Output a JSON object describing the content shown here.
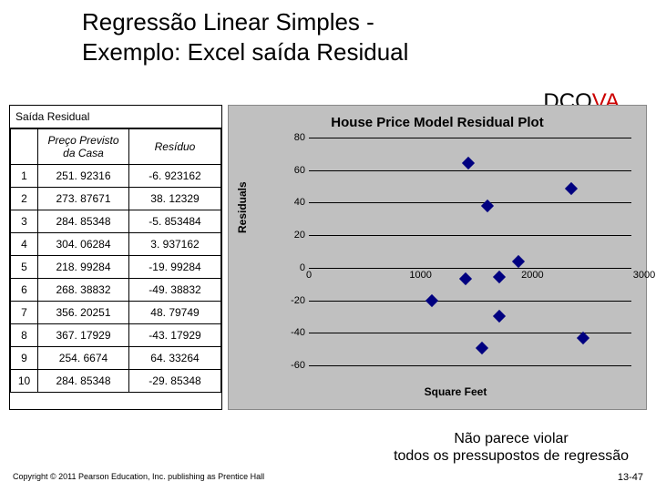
{
  "title_line1": "Regressão Linear Simples -",
  "title_line2": "Exemplo: Excel saída Residual",
  "dcova_dc": "DCO",
  "dcova_va": "VA",
  "table": {
    "title": "Saída Residual",
    "col1": "Preço Previsto da Casa",
    "col2": "Resíduo",
    "rows": [
      {
        "n": "1",
        "pred": "251. 92316",
        "res": "-6. 923162"
      },
      {
        "n": "2",
        "pred": "273. 87671",
        "res": "38. 12329"
      },
      {
        "n": "3",
        "pred": "284. 85348",
        "res": "-5. 853484"
      },
      {
        "n": "4",
        "pred": "304. 06284",
        "res": "3. 937162"
      },
      {
        "n": "5",
        "pred": "218. 99284",
        "res": "-19. 99284"
      },
      {
        "n": "6",
        "pred": "268. 38832",
        "res": "-49. 38832"
      },
      {
        "n": "7",
        "pred": "356. 20251",
        "res": "48. 79749"
      },
      {
        "n": "8",
        "pred": "367. 17929",
        "res": "-43. 17929"
      },
      {
        "n": "9",
        "pred": "254. 6674",
        "res": "64. 33264"
      },
      {
        "n": "10",
        "pred": "284. 85348",
        "res": "-29. 85348"
      }
    ]
  },
  "chart": {
    "title": "House Price Model Residual Plot",
    "ylabel": "Residuals",
    "xlabel": "Square Feet",
    "xlim": [
      0,
      3000
    ],
    "ylim": [
      -60,
      80
    ],
    "yticks": [
      -60,
      -40,
      -20,
      0,
      20,
      40,
      60,
      80
    ],
    "xticks": [
      0,
      1000,
      2000,
      3000
    ],
    "grid_color": "#000000",
    "background_color": "#c0c0c0",
    "point_color": "#000080",
    "point_size": 10,
    "points": [
      {
        "x": 1400,
        "y": -6.92
      },
      {
        "x": 1600,
        "y": 38.12
      },
      {
        "x": 1700,
        "y": -5.85
      },
      {
        "x": 1875,
        "y": 3.94
      },
      {
        "x": 1100,
        "y": -19.99
      },
      {
        "x": 1550,
        "y": -49.39
      },
      {
        "x": 2350,
        "y": 48.8
      },
      {
        "x": 2450,
        "y": -43.18
      },
      {
        "x": 1425,
        "y": 64.33
      },
      {
        "x": 1700,
        "y": -29.85
      }
    ]
  },
  "caption_line1": "Não parece violar",
  "caption_line2": "todos os pressupostos de regressão",
  "copyright": "Copyright © 2011 Pearson Education, Inc. publishing as Prentice Hall",
  "pagenum": "13-47"
}
